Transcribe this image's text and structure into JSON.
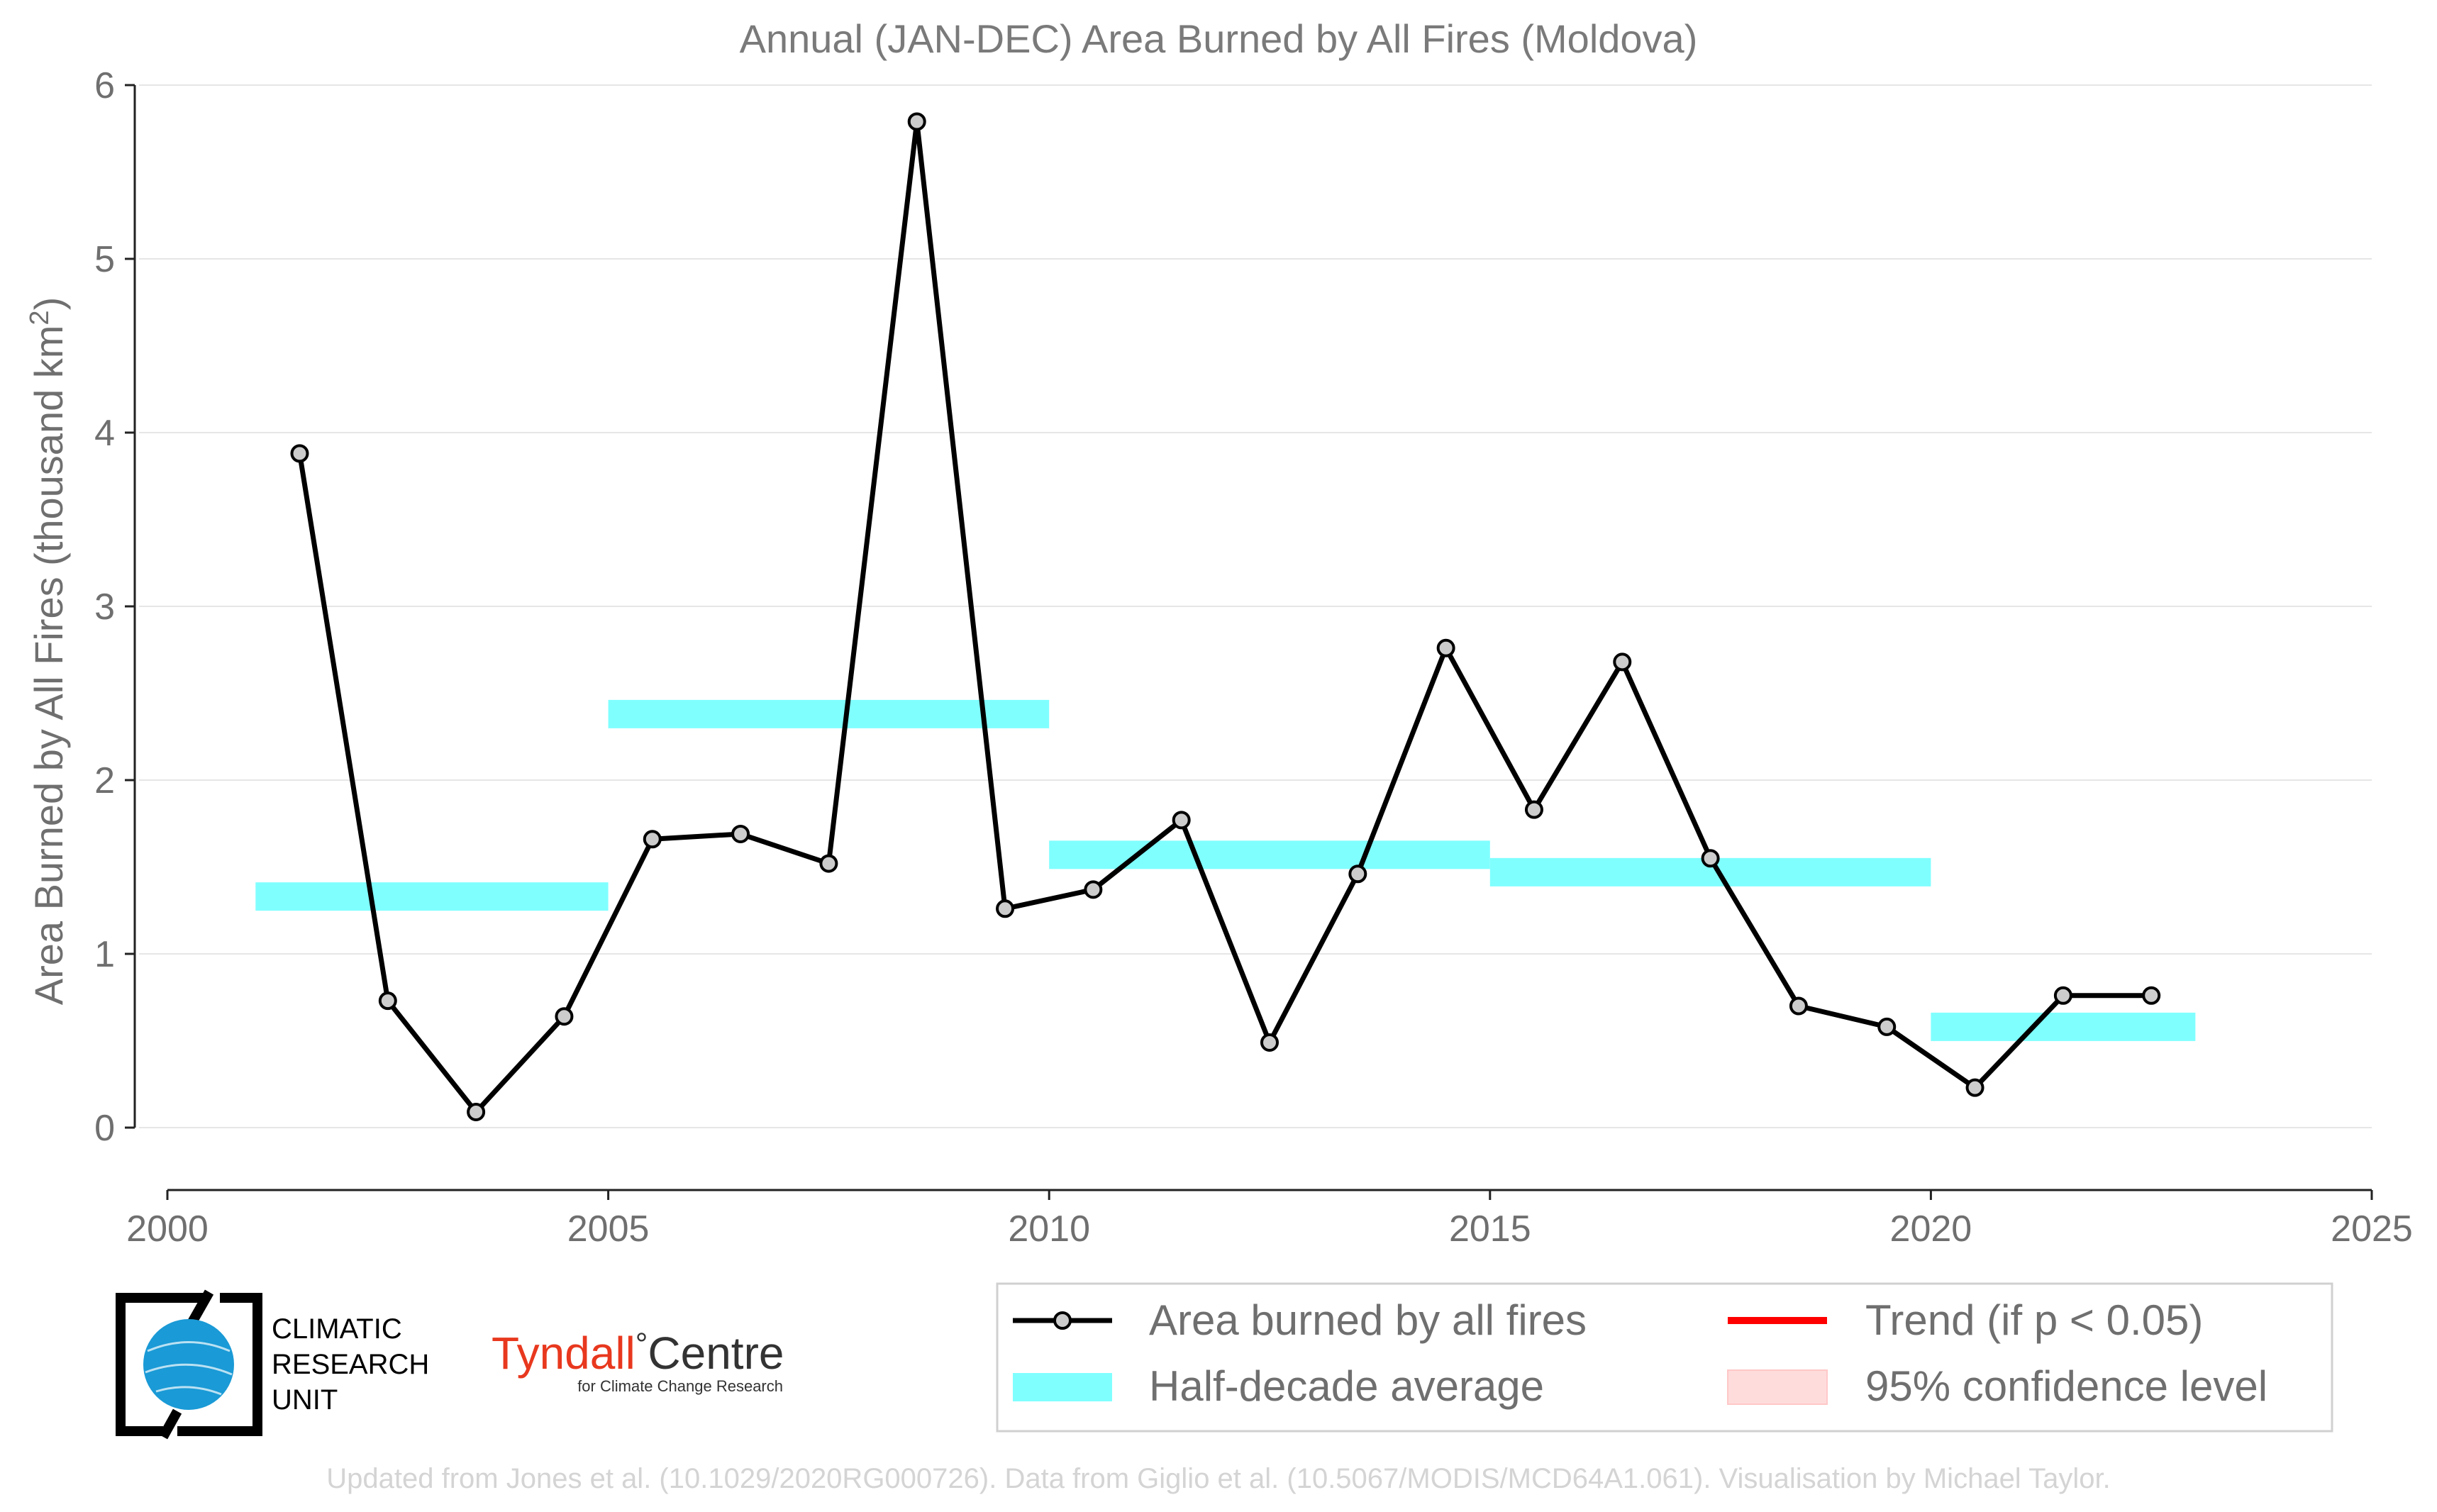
{
  "chart_data": {
    "type": "line",
    "title": "Annual (JAN-DEC) Area Burned by All Fires (Moldova)",
    "ylabel": "Area Burned by All Fires (thousand km²)",
    "ylabel_main": "Area Burned by All Fires (thousand km",
    "ylabel_sup": "2",
    "ylabel_close": ")",
    "xlim": [
      2000,
      2025
    ],
    "ylim": [
      0,
      6
    ],
    "xticks": [
      "2000",
      "2005",
      "2010",
      "2015",
      "2020",
      "2025"
    ],
    "yticks": [
      "0",
      "1",
      "2",
      "3",
      "4",
      "5",
      "6"
    ],
    "grid": "horizontal",
    "legend_position": "bottom-right",
    "series": [
      {
        "name": "Area burned by all fires",
        "color": "#000000",
        "x": [
          2001.5,
          2002.5,
          2003.5,
          2004.5,
          2005.5,
          2006.5,
          2007.5,
          2008.5,
          2009.5,
          2010.5,
          2011.5,
          2012.5,
          2013.5,
          2014.5,
          2015.5,
          2016.5,
          2017.5,
          2018.5,
          2019.5,
          2020.5,
          2021.5,
          2022.5
        ],
        "y": [
          3.88,
          0.73,
          0.09,
          0.64,
          1.66,
          1.69,
          1.52,
          5.79,
          1.26,
          1.37,
          1.77,
          0.49,
          1.46,
          2.76,
          1.83,
          2.68,
          1.55,
          0.7,
          0.58,
          0.23,
          0.76,
          0.76
        ]
      }
    ],
    "half_decade_average": {
      "name": "Half-decade average",
      "color": "#80ffff",
      "segments": [
        {
          "start": 2001,
          "end": 2005,
          "value": 1.33
        },
        {
          "start": 2005,
          "end": 2010,
          "value": 2.38
        },
        {
          "start": 2010,
          "end": 2015,
          "value": 1.57
        },
        {
          "start": 2015,
          "end": 2020,
          "value": 1.47
        },
        {
          "start": 2020,
          "end": 2023,
          "value": 0.58
        }
      ]
    },
    "legend": [
      {
        "label": "Area burned by all fires",
        "kind": "line-marker",
        "color": "#000000"
      },
      {
        "label": "Trend (if p < 0.05)",
        "kind": "line",
        "color": "#ff0000"
      },
      {
        "label": "Half-decade average",
        "kind": "band",
        "color": "#80ffff"
      },
      {
        "label": "95% confidence level",
        "kind": "band",
        "color": "#ffdcdc"
      }
    ]
  },
  "logos": {
    "cru": [
      "CLIMATIC",
      "RESEARCH",
      "UNIT"
    ],
    "tyndall_main": "Tyndall",
    "tyndall_degree": "°",
    "tyndall_centre": "Centre",
    "tyndall_sub": "for Climate Change Research"
  },
  "footer": "Updated from Jones et al. (10.1029/2020RG000726). Data from Giglio et al. (10.5067/MODIS/MCD64A1.061). Visualisation by Michael Taylor."
}
